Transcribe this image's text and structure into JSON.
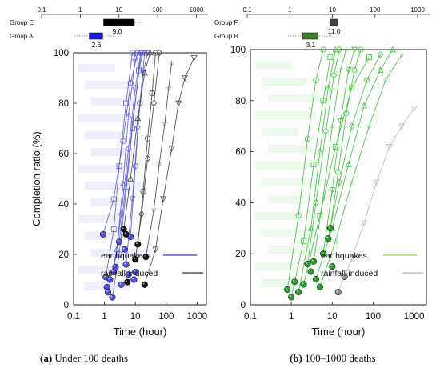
{
  "captions": [
    {
      "label": "(a)",
      "text": "Under 100 deaths"
    },
    {
      "label": "(b)",
      "text": "100–1000 deaths"
    }
  ],
  "chart_data": [
    {
      "panel": "a",
      "type": "scatter",
      "xlabel": "Time (hour)",
      "ylabel": "Completion ratio (%)",
      "xscale": "log",
      "xlim": [
        0.1,
        2000
      ],
      "ylim": [
        0,
        100
      ],
      "xticks": [
        "0.1",
        "1",
        "10",
        "100",
        "1000"
      ],
      "yticks": [
        "0",
        "20",
        "40",
        "60",
        "80",
        "100"
      ],
      "top_axis_ticks": [
        "0.1",
        "1",
        "10",
        "100",
        "1000"
      ],
      "legend": {
        "position": "bottom-right",
        "entries": [
          {
            "label": "earthquakes",
            "color": "#3a3ad0"
          },
          {
            "label": "rainfall-induced",
            "color": "#333333"
          }
        ]
      },
      "box_summary": [
        {
          "group": "Group E",
          "color": "#000000",
          "q1": 4,
          "q3": 25,
          "whisker": [
            4,
            40
          ],
          "median": 9.0,
          "median_label": "9.0"
        },
        {
          "group": "Group A",
          "color": "#1a1ae6",
          "q1": 1.7,
          "q3": 3.8,
          "whisker": [
            0.7,
            8
          ],
          "median": 2.6,
          "median_label": "2.6"
        }
      ],
      "series": [
        {
          "name": "earthquakes",
          "color": "#5050d8",
          "points": [
            [
              0.9,
              28
            ],
            [
              1.1,
              11
            ],
            [
              1.2,
              7
            ],
            [
              1.3,
              5
            ],
            [
              1.5,
              10
            ],
            [
              1.8,
              3
            ],
            [
              2.0,
              13
            ],
            [
              2.3,
              15
            ],
            [
              3.0,
              25
            ],
            [
              3.5,
              8
            ],
            [
              4.5,
              22
            ],
            [
              5.0,
              16
            ],
            [
              6.0,
              12
            ],
            [
              7.0,
              27
            ],
            [
              9.0,
              10
            ],
            [
              10,
              13
            ]
          ]
        },
        {
          "name": "rainfall-induced",
          "color": "#111111",
          "points": [
            [
              4.2,
              30
            ],
            [
              5.0,
              28
            ],
            [
              5.5,
              9
            ],
            [
              10,
              18
            ],
            [
              12,
              24
            ],
            [
              20,
              8
            ],
            [
              22,
              19
            ]
          ]
        }
      ],
      "trajectories": [
        {
          "name": "earthquakes",
          "points": [
            [
              0.9,
              28
            ],
            [
              2,
              42
            ],
            [
              4,
              65
            ],
            [
              7,
              88
            ],
            [
              12,
              100
            ]
          ]
        },
        {
          "name": "earthquakes",
          "points": [
            [
              1.1,
              11
            ],
            [
              2,
              30
            ],
            [
              3,
              55
            ],
            [
              5,
              80
            ],
            [
              8,
              100
            ]
          ]
        },
        {
          "name": "earthquakes",
          "points": [
            [
              1.3,
              5
            ],
            [
              2.5,
              22
            ],
            [
              4,
              48
            ],
            [
              6,
              75
            ],
            [
              10,
              98
            ]
          ]
        },
        {
          "name": "earthquakes",
          "points": [
            [
              2,
              13
            ],
            [
              3.5,
              36
            ],
            [
              6,
              62
            ],
            [
              10,
              86
            ],
            [
              15,
              100
            ]
          ]
        },
        {
          "name": "earthquakes",
          "points": [
            [
              3,
              25
            ],
            [
              5,
              48
            ],
            [
              8,
              72
            ],
            [
              14,
              95
            ],
            [
              18,
              100
            ]
          ]
        },
        {
          "name": "earthquakes",
          "points": [
            [
              5,
              16
            ],
            [
              8,
              42
            ],
            [
              12,
              70
            ],
            [
              18,
              92
            ],
            [
              25,
              100
            ]
          ]
        },
        {
          "name": "earthquakes",
          "points": [
            [
              7,
              27
            ],
            [
              10,
              55
            ],
            [
              14,
              80
            ],
            [
              20,
              100
            ]
          ]
        },
        {
          "name": "earthquakes",
          "points": [
            [
              1.8,
              3
            ],
            [
              3,
              20
            ],
            [
              5,
              45
            ],
            [
              8,
              70
            ],
            [
              13,
              93
            ],
            [
              16,
              100
            ]
          ]
        },
        {
          "name": "rainfall-induced",
          "points": [
            [
              4.2,
              30
            ],
            [
              7,
              50
            ],
            [
              12,
              74
            ],
            [
              20,
              92
            ],
            [
              30,
              100
            ]
          ]
        },
        {
          "name": "rainfall-induced",
          "points": [
            [
              10,
              18
            ],
            [
              16,
              36
            ],
            [
              25,
              58
            ],
            [
              40,
              80
            ],
            [
              60,
              100
            ]
          ]
        },
        {
          "name": "rainfall-induced",
          "points": [
            [
              22,
              19
            ],
            [
              40,
              38
            ],
            [
              60,
              56
            ],
            [
              90,
              72
            ],
            [
              120,
              86
            ],
            [
              150,
              96
            ]
          ]
        },
        {
          "name": "rainfall-induced",
          "points": [
            [
              20,
              8
            ],
            [
              45,
              22
            ],
            [
              80,
              42
            ],
            [
              150,
              62
            ],
            [
              250,
              80
            ],
            [
              400,
              90
            ],
            [
              800,
              98
            ]
          ]
        },
        {
          "name": "rainfall-induced",
          "points": [
            [
              12,
              24
            ],
            [
              18,
              45
            ],
            [
              25,
              66
            ],
            [
              35,
              84
            ],
            [
              45,
              100
            ]
          ]
        }
      ]
    },
    {
      "panel": "b",
      "type": "scatter",
      "xlabel": "Time (hour)",
      "ylabel": "",
      "xscale": "log",
      "xlim": [
        0.1,
        2000
      ],
      "ylim": [
        0,
        100
      ],
      "xticks": [
        "0.1",
        "1",
        "10",
        "100",
        "1000"
      ],
      "yticks": [
        "0",
        "20",
        "40",
        "60",
        "80",
        "100"
      ],
      "top_axis_ticks": [
        "0.1",
        "1",
        "10",
        "100",
        "1000"
      ],
      "legend": {
        "position": "bottom-right",
        "entries": [
          {
            "label": "earthquakes",
            "color": "#9ed638"
          },
          {
            "label": "rainfall-induced",
            "color": "#bbbbbb"
          }
        ]
      },
      "box_summary": [
        {
          "group": "Group F",
          "color": "#444444",
          "q1": 9,
          "q3": 13,
          "whisker": [
            8,
            14
          ],
          "median": 11.0,
          "median_label": "11.0"
        },
        {
          "group": "Group B",
          "color": "#3e7f2c",
          "q1": 2,
          "q3": 4.5,
          "whisker": [
            0.9,
            10
          ],
          "median": 3.1,
          "median_label": "3.1"
        }
      ],
      "series": [
        {
          "name": "earthquakes",
          "color": "#2d9a2d",
          "points": [
            [
              0.8,
              6
            ],
            [
              1.0,
              3
            ],
            [
              1.2,
              9
            ],
            [
              1.5,
              5
            ],
            [
              2.0,
              8
            ],
            [
              2.5,
              16
            ],
            [
              3.0,
              13
            ],
            [
              3.5,
              17
            ],
            [
              4.0,
              10
            ],
            [
              5.0,
              7
            ],
            [
              6.0,
              20
            ],
            [
              8.0,
              26
            ],
            [
              9.0,
              30
            ],
            [
              10,
              15
            ]
          ]
        },
        {
          "name": "rainfall-induced",
          "color": "#8a8a8a",
          "points": [
            [
              20,
              11
            ],
            [
              14,
              5
            ]
          ]
        }
      ],
      "trajectories": [
        {
          "name": "earthquakes",
          "points": [
            [
              0.8,
              6
            ],
            [
              1.5,
              35
            ],
            [
              2.5,
              65
            ],
            [
              4,
              88
            ],
            [
              6,
              100
            ]
          ]
        },
        {
          "name": "earthquakes",
          "points": [
            [
              1,
              3
            ],
            [
              2,
              25
            ],
            [
              3.5,
              55
            ],
            [
              6,
              80
            ],
            [
              9,
              97
            ]
          ]
        },
        {
          "name": "earthquakes",
          "points": [
            [
              1.5,
              5
            ],
            [
              3,
              30
            ],
            [
              5,
              60
            ],
            [
              8,
              85
            ],
            [
              12,
              100
            ]
          ]
        },
        {
          "name": "earthquakes",
          "points": [
            [
              2.5,
              16
            ],
            [
              4,
              40
            ],
            [
              7,
              68
            ],
            [
              11,
              90
            ],
            [
              15,
              100
            ]
          ]
        },
        {
          "name": "earthquakes",
          "points": [
            [
              3.5,
              17
            ],
            [
              6,
              42
            ],
            [
              10,
              70
            ],
            [
              16,
              92
            ],
            [
              22,
              100
            ]
          ]
        },
        {
          "name": "earthquakes",
          "points": [
            [
              6,
              20
            ],
            [
              10,
              45
            ],
            [
              16,
              72
            ],
            [
              25,
              92
            ],
            [
              35,
              100
            ]
          ]
        },
        {
          "name": "earthquakes",
          "points": [
            [
              9,
              30
            ],
            [
              14,
              52
            ],
            [
              22,
              75
            ],
            [
              35,
              92
            ],
            [
              50,
              100
            ]
          ]
        },
        {
          "name": "earthquakes",
          "points": [
            [
              2,
              8
            ],
            [
              5,
              35
            ],
            [
              12,
              62
            ],
            [
              30,
              85
            ],
            [
              80,
              97
            ]
          ]
        },
        {
          "name": "earthquakes",
          "points": [
            [
              4,
              10
            ],
            [
              10,
              30
            ],
            [
              25,
              55
            ],
            [
              60,
              78
            ],
            [
              150,
              92
            ],
            [
              300,
              100
            ]
          ]
        },
        {
          "name": "earthquakes",
          "points": [
            [
              8,
              26
            ],
            [
              15,
              48
            ],
            [
              30,
              70
            ],
            [
              70,
              88
            ],
            [
              150,
              98
            ]
          ]
        },
        {
          "name": "earthquakes",
          "points": [
            [
              5,
              7
            ],
            [
              12,
              25
            ],
            [
              30,
              48
            ],
            [
              80,
              70
            ],
            [
              200,
              88
            ],
            [
              500,
              98
            ]
          ]
        },
        {
          "name": "rainfall-induced",
          "points": [
            [
              14,
              5
            ],
            [
              30,
              18
            ],
            [
              60,
              32
            ],
            [
              120,
              48
            ],
            [
              250,
              62
            ],
            [
              500,
              70
            ],
            [
              1000,
              77
            ]
          ]
        }
      ]
    }
  ]
}
